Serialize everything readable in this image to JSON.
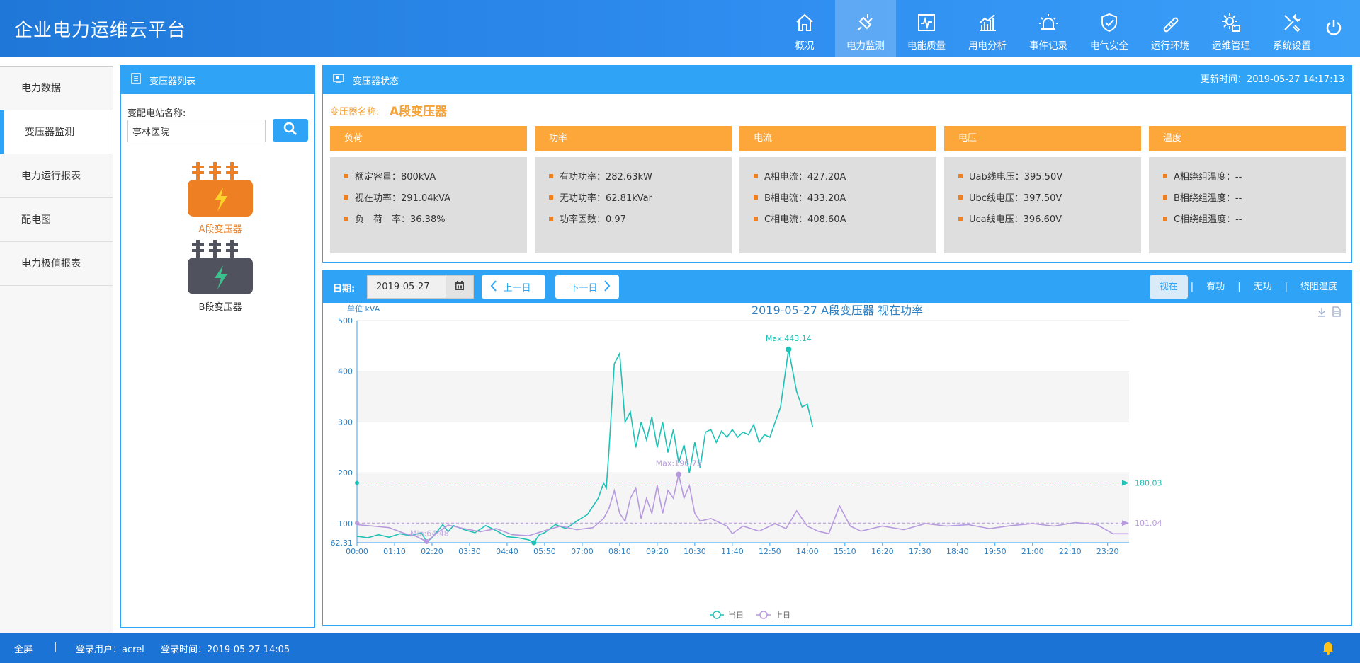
{
  "app": {
    "title": "企业电力运维云平台"
  },
  "nav": {
    "items": [
      {
        "label": "概况",
        "icon": "home-icon"
      },
      {
        "label": "电力监测",
        "icon": "plug-icon",
        "active": true
      },
      {
        "label": "电能质量",
        "icon": "pulse-icon"
      },
      {
        "label": "用电分析",
        "icon": "bar-chart-icon"
      },
      {
        "label": "事件记录",
        "icon": "alarm-icon"
      },
      {
        "label": "电气安全",
        "icon": "shield-icon"
      },
      {
        "label": "运行环境",
        "icon": "thermometer-icon"
      },
      {
        "label": "运维管理",
        "icon": "gear-icon"
      },
      {
        "label": "系统设置",
        "icon": "tools-icon"
      }
    ]
  },
  "sidebar": {
    "items": [
      {
        "label": "电力数据"
      },
      {
        "label": "变压器监测",
        "active": true
      },
      {
        "label": "电力运行报表"
      },
      {
        "label": "配电图"
      },
      {
        "label": "电力极值报表"
      }
    ]
  },
  "transformer_list": {
    "title": "变压器列表",
    "station_label": "变配电站名称:",
    "station_value": "亭林医院",
    "transformers": [
      {
        "label": "A段变压器",
        "color": "#ee7f23",
        "selected": true
      },
      {
        "label": "B段变压器",
        "color": "#50535e",
        "selected": false
      }
    ]
  },
  "transformer_status": {
    "title": "变压器状态",
    "update_label": "更新时间：",
    "update_time": "2019-05-27 14:17:13",
    "name_label": "变压器名称:",
    "name_value": "A段变压器",
    "cards": [
      {
        "title": "负荷",
        "rows": [
          "额定容量：800kVA",
          "视在功率：291.04kVA",
          "负　荷　率：36.38%"
        ]
      },
      {
        "title": "功率",
        "rows": [
          "有功功率：282.63kW",
          "无功功率：62.81kVar",
          "功率因数：0.97"
        ]
      },
      {
        "title": "电流",
        "rows": [
          "A相电流：427.20A",
          "B相电流：433.20A",
          "C相电流：408.60A"
        ]
      },
      {
        "title": "电压",
        "rows": [
          "Uab线电压：395.50V",
          "Ubc线电压：397.50V",
          "Uca线电压：396.60V"
        ]
      },
      {
        "title": "温度",
        "rows": [
          "A相绕组温度：--",
          "B相绕组温度：--",
          "C相绕组温度：--"
        ]
      }
    ]
  },
  "chart_panel": {
    "date_label": "日期:",
    "date_value": "2019-05-27",
    "prev_label": "上一日",
    "next_label": "下一日",
    "tabs": [
      {
        "label": "视在",
        "active": true
      },
      {
        "label": "有功"
      },
      {
        "label": "无功"
      },
      {
        "label": "绕阻温度"
      }
    ],
    "separator": "|"
  },
  "chart_data": {
    "type": "line",
    "title": "2019-05-27  A段变压器  视在功率",
    "ylabel": "单位 kVA",
    "ylim": [
      62.31,
      500
    ],
    "yticks": [
      100,
      200,
      300,
      400,
      500
    ],
    "ymin_label": "62.31",
    "xlim": [
      "00:00",
      "24:00"
    ],
    "xticks": [
      "00:00",
      "01:10",
      "02:20",
      "03:30",
      "04:40",
      "05:50",
      "07:00",
      "08:10",
      "09:20",
      "10:30",
      "11:40",
      "12:50",
      "14:00",
      "15:10",
      "16:20",
      "17:30",
      "18:40",
      "19:50",
      "21:00",
      "22:10",
      "23:20"
    ],
    "grid": "horizontal bands",
    "legend": "bottom-center",
    "series": [
      {
        "name": "当日",
        "color": "#1fc1b5",
        "average": 180.03,
        "max_label": "Max:443.14",
        "max_point": [
          "13:25",
          443.14
        ],
        "min_point": [
          "05:30",
          62.31
        ],
        "points": [
          [
            "00:00",
            75
          ],
          [
            "00:20",
            72
          ],
          [
            "00:40",
            78
          ],
          [
            "01:00",
            73
          ],
          [
            "01:20",
            80
          ],
          [
            "01:40",
            76
          ],
          [
            "02:00",
            82
          ],
          [
            "02:10",
            64
          ],
          [
            "02:20",
            72
          ],
          [
            "02:40",
            98
          ],
          [
            "02:50",
            84
          ],
          [
            "03:00",
            96
          ],
          [
            "03:20",
            88
          ],
          [
            "03:40",
            82
          ],
          [
            "04:00",
            96
          ],
          [
            "04:20",
            86
          ],
          [
            "04:40",
            74
          ],
          [
            "05:00",
            72
          ],
          [
            "05:20",
            68
          ],
          [
            "05:30",
            62.31
          ],
          [
            "05:40",
            78
          ],
          [
            "05:50",
            82
          ],
          [
            "06:10",
            98
          ],
          [
            "06:30",
            90
          ],
          [
            "06:50",
            105
          ],
          [
            "07:10",
            118
          ],
          [
            "07:30",
            150
          ],
          [
            "07:40",
            180
          ],
          [
            "07:45",
            170
          ],
          [
            "07:50",
            245
          ],
          [
            "08:00",
            415
          ],
          [
            "08:10",
            435
          ],
          [
            "08:20",
            300
          ],
          [
            "08:30",
            320
          ],
          [
            "08:40",
            250
          ],
          [
            "08:50",
            300
          ],
          [
            "09:00",
            265
          ],
          [
            "09:10",
            310
          ],
          [
            "09:20",
            250
          ],
          [
            "09:30",
            300
          ],
          [
            "09:40",
            240
          ],
          [
            "09:50",
            285
          ],
          [
            "10:00",
            220
          ],
          [
            "10:10",
            255
          ],
          [
            "10:20",
            200
          ],
          [
            "10:30",
            260
          ],
          [
            "10:40",
            210
          ],
          [
            "10:50",
            280
          ],
          [
            "11:00",
            285
          ],
          [
            "11:10",
            260
          ],
          [
            "11:20",
            282
          ],
          [
            "11:30",
            270
          ],
          [
            "11:40",
            285
          ],
          [
            "11:50",
            270
          ],
          [
            "12:00",
            280
          ],
          [
            "12:10",
            275
          ],
          [
            "12:20",
            295
          ],
          [
            "12:30",
            260
          ],
          [
            "12:40",
            275
          ],
          [
            "12:50",
            270
          ],
          [
            "13:00",
            300
          ],
          [
            "13:10",
            330
          ],
          [
            "13:25",
            443.14
          ],
          [
            "13:40",
            360
          ],
          [
            "13:50",
            330
          ],
          [
            "14:00",
            335
          ],
          [
            "14:10",
            290
          ]
        ]
      },
      {
        "name": "上日",
        "color": "#b79ade",
        "average": 101.04,
        "max_label": "Max:196.75",
        "max_point": [
          "10:00",
          196.75
        ],
        "min_label": "Min:64.48",
        "min_point": [
          "02:10",
          64.48
        ],
        "points": [
          [
            "00:00",
            98
          ],
          [
            "00:30",
            95
          ],
          [
            "01:00",
            92
          ],
          [
            "01:30",
            80
          ],
          [
            "01:50",
            75
          ],
          [
            "02:10",
            64.48
          ],
          [
            "02:30",
            82
          ],
          [
            "02:50",
            97
          ],
          [
            "03:20",
            90
          ],
          [
            "03:50",
            84
          ],
          [
            "04:20",
            90
          ],
          [
            "04:50",
            78
          ],
          [
            "05:20",
            76
          ],
          [
            "05:50",
            86
          ],
          [
            "06:20",
            95
          ],
          [
            "06:50",
            88
          ],
          [
            "07:20",
            92
          ],
          [
            "07:40",
            110
          ],
          [
            "07:50",
            130
          ],
          [
            "08:00",
            165
          ],
          [
            "08:10",
            120
          ],
          [
            "08:20",
            105
          ],
          [
            "08:30",
            150
          ],
          [
            "08:40",
            170
          ],
          [
            "08:50",
            110
          ],
          [
            "09:00",
            150
          ],
          [
            "09:10",
            120
          ],
          [
            "09:20",
            175
          ],
          [
            "09:30",
            120
          ],
          [
            "09:40",
            165
          ],
          [
            "09:50",
            150
          ],
          [
            "10:00",
            196.75
          ],
          [
            "10:10",
            150
          ],
          [
            "10:20",
            175
          ],
          [
            "10:30",
            120
          ],
          [
            "10:40",
            105
          ],
          [
            "11:00",
            110
          ],
          [
            "11:30",
            95
          ],
          [
            "11:40",
            80
          ],
          [
            "12:00",
            95
          ],
          [
            "12:30",
            85
          ],
          [
            "13:00",
            100
          ],
          [
            "13:20",
            90
          ],
          [
            "13:40",
            125
          ],
          [
            "14:00",
            95
          ],
          [
            "14:20",
            85
          ],
          [
            "14:40",
            80
          ],
          [
            "15:00",
            135
          ],
          [
            "15:20",
            95
          ],
          [
            "15:40",
            85
          ],
          [
            "16:20",
            95
          ],
          [
            "17:00",
            88
          ],
          [
            "17:40",
            100
          ],
          [
            "18:20",
            95
          ],
          [
            "19:00",
            98
          ],
          [
            "19:40",
            90
          ],
          [
            "20:20",
            96
          ],
          [
            "21:00",
            100
          ],
          [
            "21:40",
            95
          ],
          [
            "22:20",
            102
          ],
          [
            "23:00",
            98
          ],
          [
            "23:30",
            80
          ],
          [
            "23:59",
            80
          ]
        ]
      }
    ]
  },
  "footer": {
    "fullscreen": "全屏",
    "separator": "|",
    "user_label": "登录用户：acrel",
    "login_time": "登录时间：2019-05-27 14:05"
  }
}
